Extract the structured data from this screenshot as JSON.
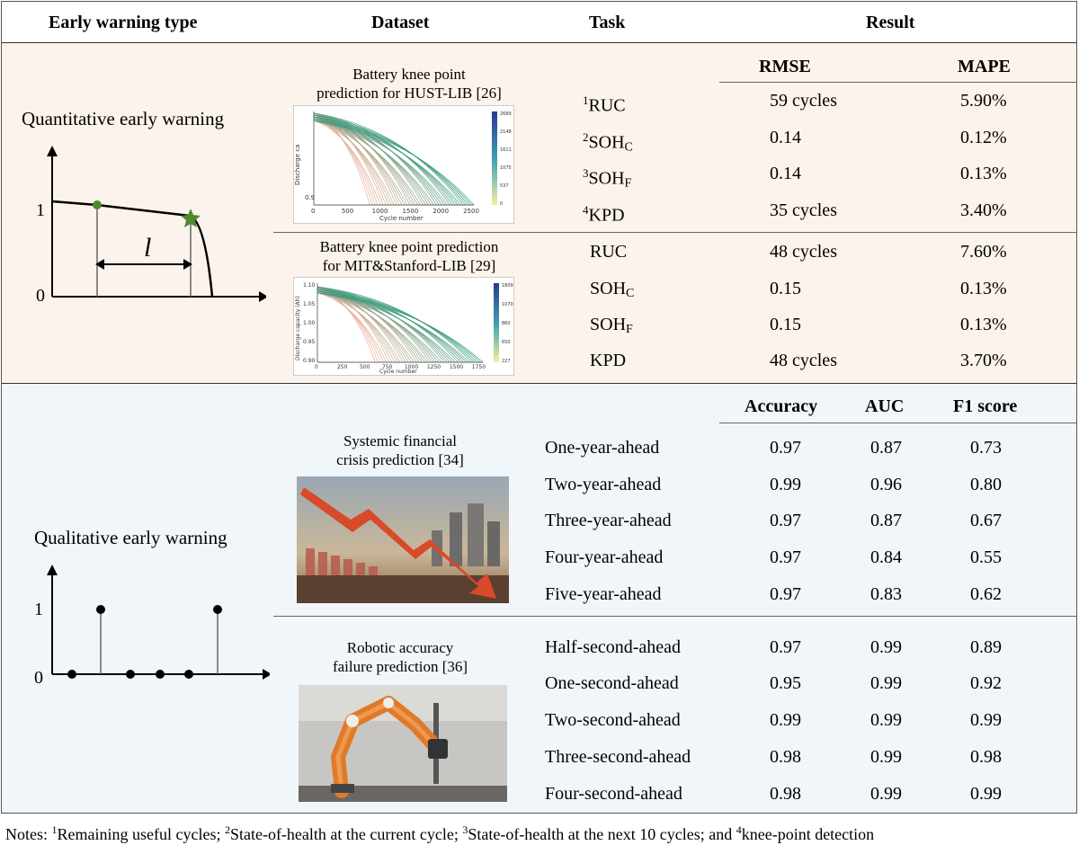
{
  "headers": {
    "type": "Early warning type",
    "dataset": "Dataset",
    "task": "Task",
    "result": "Result"
  },
  "quantitative": {
    "label": "Quantitative early warning",
    "diagram": {
      "y_one": "1",
      "y_zero": "0",
      "interval": "l"
    },
    "metrics": [
      "RMSE",
      "MAPE"
    ],
    "datasets": [
      {
        "title_line1": "Battery knee point",
        "title_line2": "prediction for HUST-LIB [26]",
        "thumbnail": {
          "ylabel": "Discharge ca",
          "xlabel": "Cycle number",
          "xticks": [
            "0",
            "500",
            "1000",
            "1500",
            "2000",
            "2500"
          ],
          "yticks": [
            "0.9"
          ],
          "colorbar_ticks": [
            "2689",
            "2148",
            "1611",
            "1075",
            "537",
            "0"
          ]
        },
        "rows": [
          {
            "sup": "1",
            "task": "RUC",
            "sub": "",
            "rmse": "59 cycles",
            "mape": "5.90%"
          },
          {
            "sup": "2",
            "task": "SOH",
            "sub": "C",
            "rmse": "0.14",
            "mape": "0.12%"
          },
          {
            "sup": "3",
            "task": "SOH",
            "sub": "F",
            "rmse": "0.14",
            "mape": "0.13%"
          },
          {
            "sup": "4",
            "task": "KPD",
            "sub": "",
            "rmse": "35 cycles",
            "mape": "3.40%"
          }
        ]
      },
      {
        "title_line1": "Battery knee point prediction",
        "title_line2": "for MIT&Stanford-LIB [29]",
        "thumbnail": {
          "ylabel": "Discharge capacity (Ah)",
          "xlabel": "Cycle number",
          "xticks": [
            "0",
            "250",
            "500",
            "750",
            "1000",
            "1250",
            "1500",
            "1750"
          ],
          "yticks": [
            "1.10",
            "1.05",
            "1.00",
            "0.95",
            "0.90"
          ],
          "colorbar_ticks": [
            "1809",
            "1070",
            "860",
            "650",
            "227"
          ]
        },
        "rows": [
          {
            "sup": "",
            "task": "RUC",
            "sub": "",
            "rmse": "48 cycles",
            "mape": "7.60%"
          },
          {
            "sup": "",
            "task": "SOH",
            "sub": "C",
            "rmse": "0.15",
            "mape": "0.13%"
          },
          {
            "sup": "",
            "task": "SOH",
            "sub": "F",
            "rmse": "0.15",
            "mape": "0.13%"
          },
          {
            "sup": "",
            "task": "KPD",
            "sub": "",
            "rmse": "48 cycles",
            "mape": "3.70%"
          }
        ]
      }
    ]
  },
  "qualitative": {
    "label": "Qualitative early warning",
    "diagram": {
      "y_one": "1",
      "y_zero": "0"
    },
    "metrics": [
      "Accuracy",
      "AUC",
      "F1 score"
    ],
    "datasets": [
      {
        "title_line1": "Systemic financial",
        "title_line2": "crisis prediction [34]",
        "rows": [
          {
            "task": "One-year-ahead",
            "acc": "0.97",
            "auc": "0.87",
            "f1": "0.73"
          },
          {
            "task": "Two-year-ahead",
            "acc": "0.99",
            "auc": "0.96",
            "f1": "0.80"
          },
          {
            "task": "Three-year-ahead",
            "acc": "0.97",
            "auc": "0.87",
            "f1": "0.67"
          },
          {
            "task": "Four-year-ahead",
            "acc": "0.97",
            "auc": "0.84",
            "f1": "0.55"
          },
          {
            "task": "Five-year-ahead",
            "acc": "0.97",
            "auc": "0.83",
            "f1": "0.62"
          }
        ]
      },
      {
        "title_line1": "Robotic accuracy",
        "title_line2": "failure prediction [36]",
        "rows": [
          {
            "task": "Half-second-ahead",
            "acc": "0.97",
            "auc": "0.99",
            "f1": "0.89"
          },
          {
            "task": "One-second-ahead",
            "acc": "0.95",
            "auc": "0.99",
            "f1": "0.92"
          },
          {
            "task": "Two-second-ahead",
            "acc": "0.99",
            "auc": "0.99",
            "f1": "0.99"
          },
          {
            "task": "Three-second-ahead",
            "acc": "0.98",
            "auc": "0.99",
            "f1": "0.98"
          },
          {
            "task": "Four-second-ahead",
            "acc": "0.98",
            "auc": "0.99",
            "f1": "0.99"
          }
        ]
      }
    ]
  },
  "notes": {
    "prefix": "Notes: ",
    "items": [
      {
        "sup": "1",
        "text": "Remaining useful cycles; "
      },
      {
        "sup": "2",
        "text": "State-of-health at the current cycle; "
      },
      {
        "sup": "3",
        "text": "State-of-health at the next 10 cycles; and "
      },
      {
        "sup": "4",
        "text": "knee-point detection"
      }
    ]
  },
  "colors": {
    "quant_band": "#fcf3ec",
    "qual_band": "#f1f6fa",
    "knee_marker": "#4f8a2e",
    "arrow_red": "#d84a2a",
    "robot_orange": "#e07a2a"
  }
}
